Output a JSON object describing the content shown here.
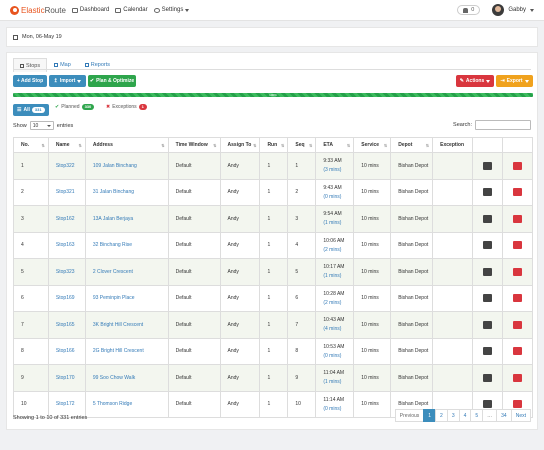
{
  "nav": {
    "brand_a": "Elastic",
    "brand_b": "Route",
    "dashboard": "Dashboard",
    "calendar": "Calendar",
    "settings": "Settings",
    "notif_count": "0",
    "user": "Gabby"
  },
  "date_range": "Mon, 06-May 19",
  "tabs": [
    "Stops",
    "Map",
    "Reports"
  ],
  "toolbar": {
    "add": "+ Add Stop",
    "import": "Import",
    "plan": "Plan & Optimize",
    "actions": "Actions",
    "export": "Export"
  },
  "progress": {
    "label": "100%",
    "value": 100
  },
  "filters": {
    "all": "All",
    "all_count": "331",
    "planned": "Planned",
    "planned_count": "330",
    "exceptions": "Exceptions",
    "exceptions_count": "1"
  },
  "length": {
    "show": "Show",
    "value": "10",
    "entries": "entries"
  },
  "search_label": "Search:",
  "columns": [
    "No.",
    "Name",
    "Address",
    "Time Window",
    "Assign To",
    "Run",
    "Seq",
    "ETA",
    "Service",
    "Depot",
    "Exception"
  ],
  "rows": [
    {
      "no": "1",
      "name": "Stop322",
      "address": "109 Jalan Binchang",
      "tw": "Default",
      "assign": "Andy",
      "run": "1",
      "seq": "1",
      "eta": "9:33 AM",
      "eta_sub": "(3 mins)",
      "service": "10 mins",
      "depot": "Bishan Depot"
    },
    {
      "no": "2",
      "name": "Stop321",
      "address": "31 Jalan Binchang",
      "tw": "Default",
      "assign": "Andy",
      "run": "1",
      "seq": "2",
      "eta": "9:43 AM",
      "eta_sub": "(0 mins)",
      "service": "10 mins",
      "depot": "Bishan Depot"
    },
    {
      "no": "3",
      "name": "Stop162",
      "address": "13A Jalan Berjaya",
      "tw": "Default",
      "assign": "Andy",
      "run": "1",
      "seq": "3",
      "eta": "9:54 AM",
      "eta_sub": "(1 mins)",
      "service": "10 mins",
      "depot": "Bishan Depot"
    },
    {
      "no": "4",
      "name": "Stop163",
      "address": "32 Binchang Rise",
      "tw": "Default",
      "assign": "Andy",
      "run": "1",
      "seq": "4",
      "eta": "10:06 AM",
      "eta_sub": "(2 mins)",
      "service": "10 mins",
      "depot": "Bishan Depot"
    },
    {
      "no": "5",
      "name": "Stop323",
      "address": "2 Clover Crescent",
      "tw": "Default",
      "assign": "Andy",
      "run": "1",
      "seq": "5",
      "eta": "10:17 AM",
      "eta_sub": "(1 mins)",
      "service": "10 mins",
      "depot": "Bishan Depot"
    },
    {
      "no": "6",
      "name": "Stop169",
      "address": "93 Peminpin Place",
      "tw": "Default",
      "assign": "Andy",
      "run": "1",
      "seq": "6",
      "eta": "10:28 AM",
      "eta_sub": "(2 mins)",
      "service": "10 mins",
      "depot": "Bishan Depot"
    },
    {
      "no": "7",
      "name": "Stop165",
      "address": "3K Bright Hill Crescent",
      "tw": "Default",
      "assign": "Andy",
      "run": "1",
      "seq": "7",
      "eta": "10:43 AM",
      "eta_sub": "(4 mins)",
      "service": "10 mins",
      "depot": "Bishan Depot"
    },
    {
      "no": "8",
      "name": "Stop166",
      "address": "2G Bright Hill Crescent",
      "tw": "Default",
      "assign": "Andy",
      "run": "1",
      "seq": "8",
      "eta": "10:53 AM",
      "eta_sub": "(0 mins)",
      "service": "10 mins",
      "depot": "Bishan Depot"
    },
    {
      "no": "9",
      "name": "Stop170",
      "address": "99 Soo Chow Walk",
      "tw": "Default",
      "assign": "Andy",
      "run": "1",
      "seq": "9",
      "eta": "11:04 AM",
      "eta_sub": "(1 mins)",
      "service": "10 mins",
      "depot": "Bishan Depot"
    },
    {
      "no": "10",
      "name": "Stop172",
      "address": "5 Thomson Ridge",
      "tw": "Default",
      "assign": "Andy",
      "run": "1",
      "seq": "10",
      "eta": "11:14 AM",
      "eta_sub": "(0 mins)",
      "service": "10 mins",
      "depot": "Bishan Depot"
    }
  ],
  "info": "Showing 1 to 10 of 331 entries",
  "pager": [
    "Previous",
    "1",
    "2",
    "3",
    "4",
    "5",
    "…",
    "34",
    "Next"
  ]
}
